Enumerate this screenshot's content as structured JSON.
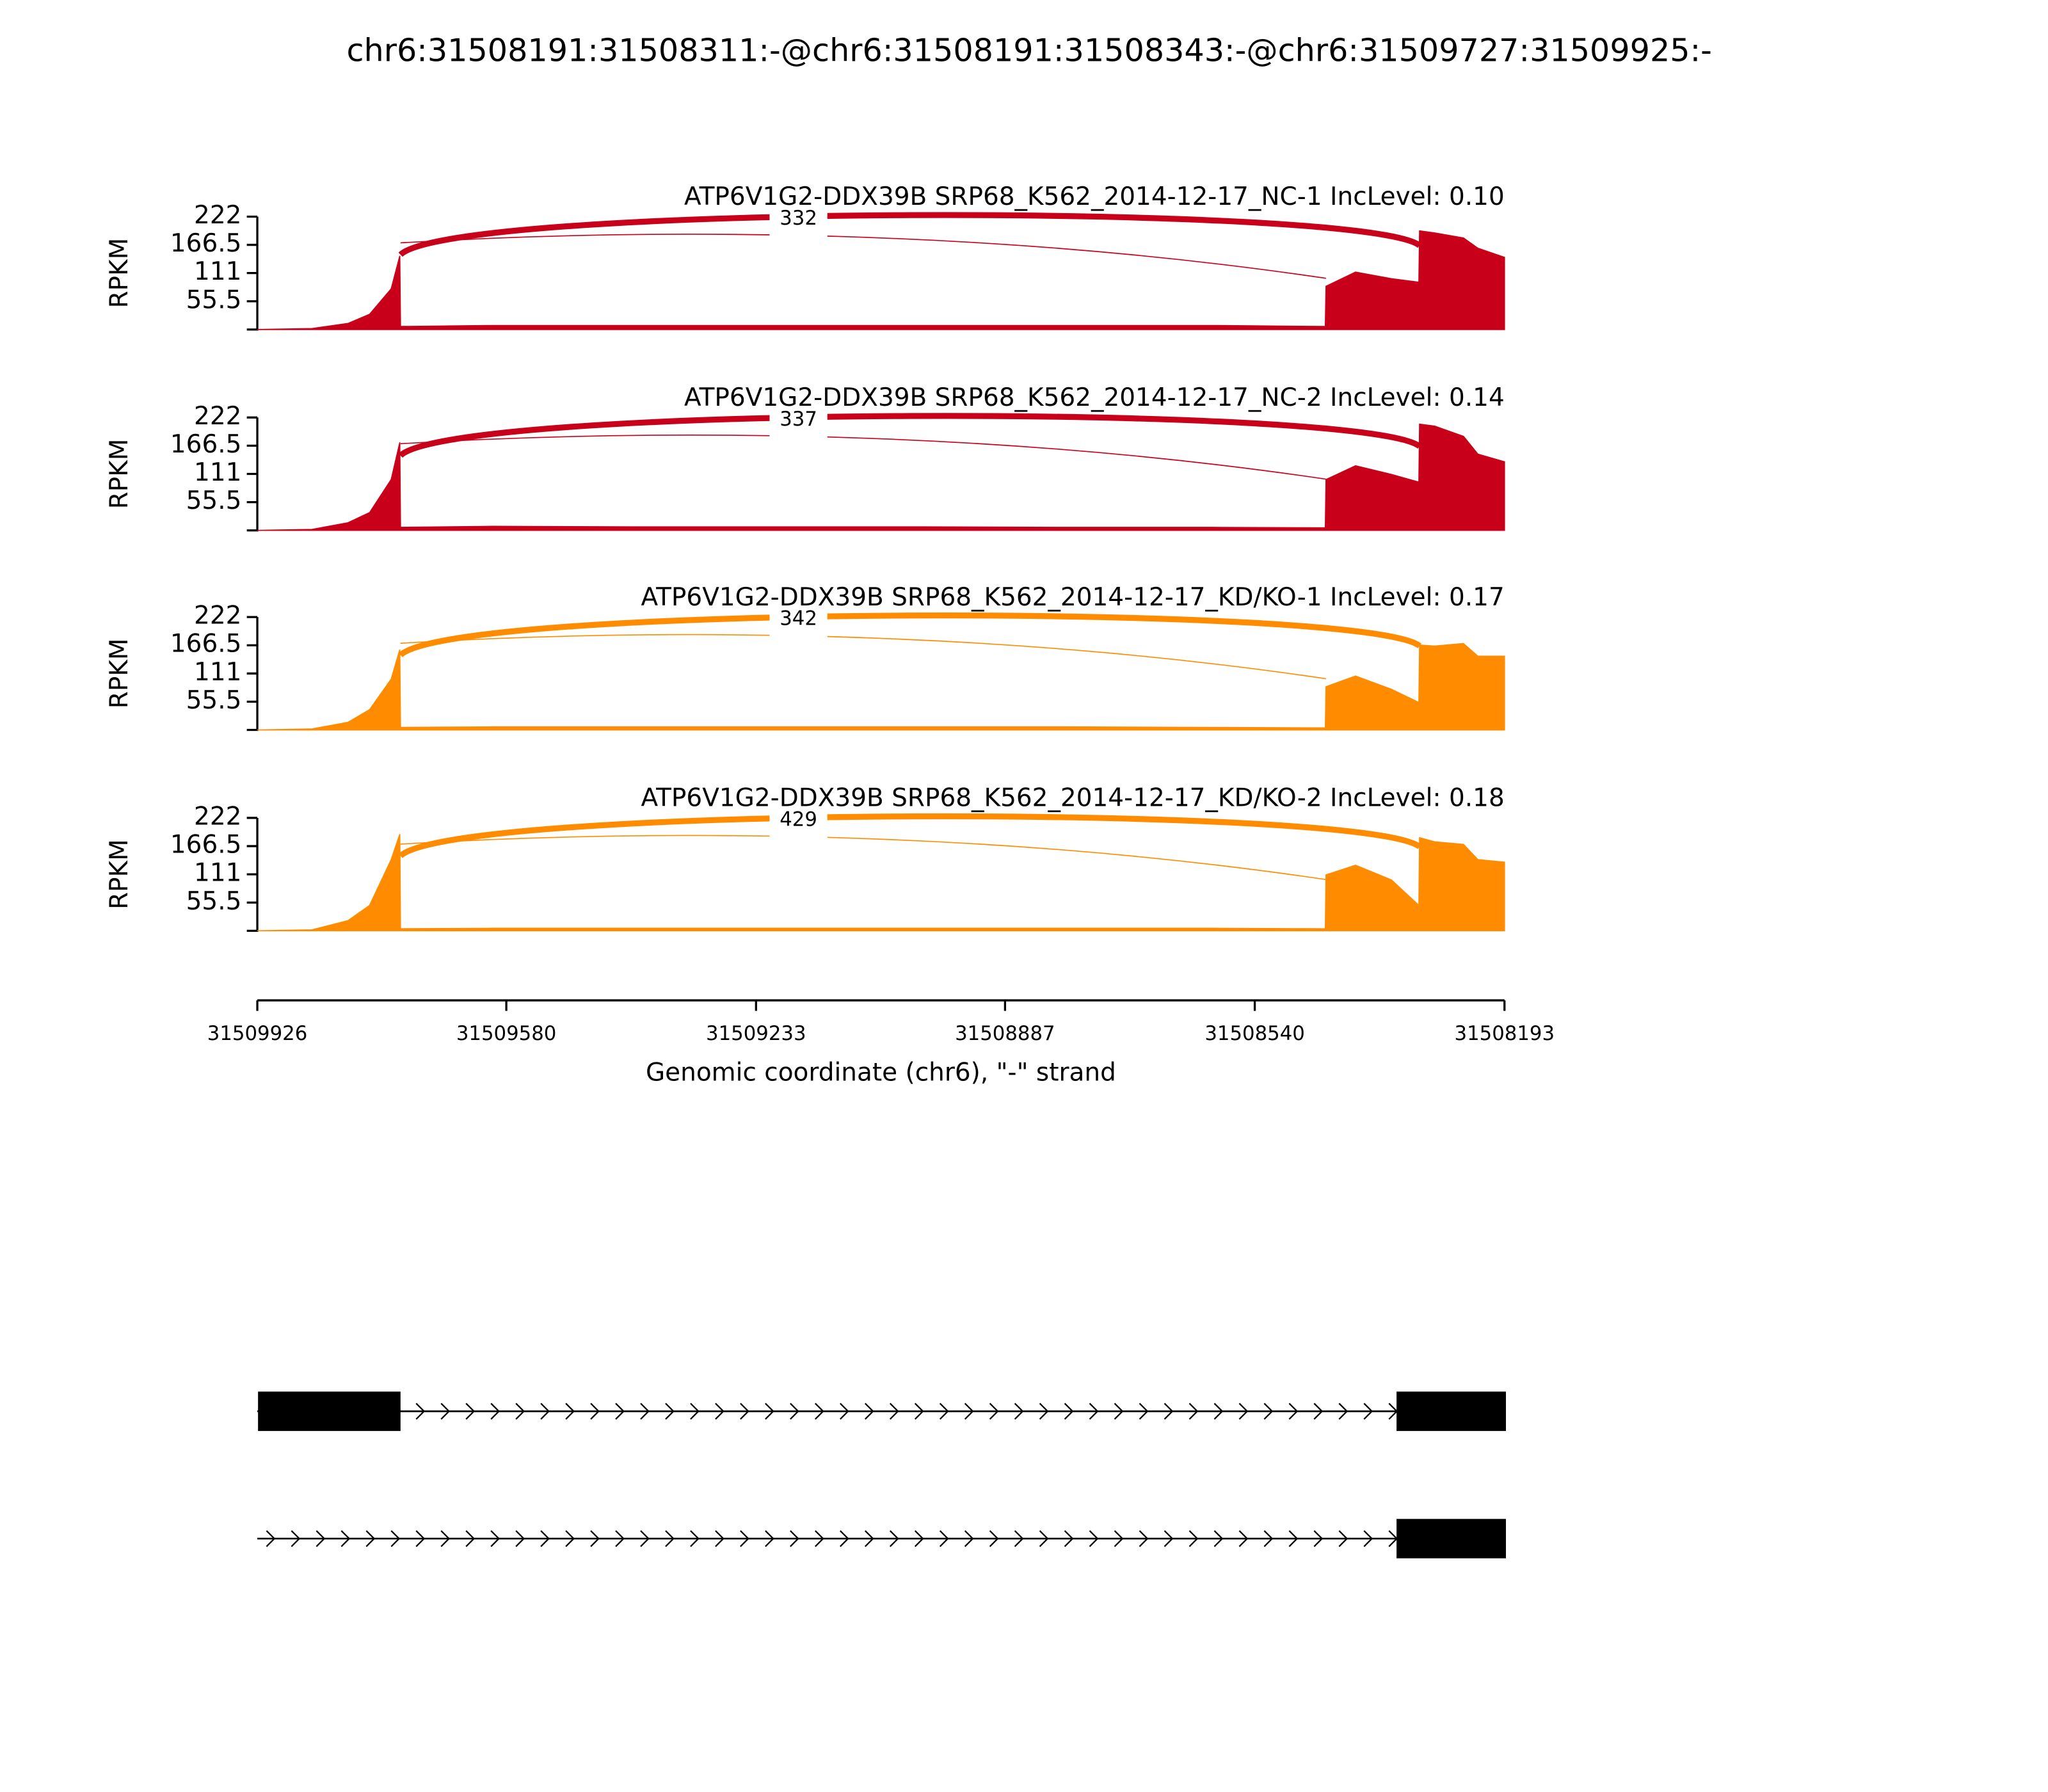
{
  "chart_data": {
    "type": "sashimi",
    "title": "chr6:31508191:31508311:-@chr6:31508191:31508343:-@chr6:31509727:31509925:-",
    "xlim": [
      31509926,
      31508193
    ],
    "xticks": [
      31509926,
      31509580,
      31509233,
      31508887,
      31508540,
      31508193
    ],
    "xlabel": "Genomic coordinate (chr6), \"-\" strand",
    "coverage_x": [
      31509926,
      31509850,
      31509800,
      31509770,
      31509740,
      31509728,
      31509727,
      31509600,
      31509400,
      31509200,
      31509000,
      31508800,
      31508600,
      31508442,
      31508441,
      31508400,
      31508350,
      31508312,
      31508311,
      31508290,
      31508250,
      31508230,
      31508193
    ],
    "panels": [
      {
        "label": "ATP6V1G2-DDX39B SRP68_K562_2014-12-17_NC-1 IncLevel: 0.10",
        "color": "#c9001a",
        "ylabel": "RPKM",
        "ylim": [
          0,
          222
        ],
        "yticks": [
          55.5,
          111,
          166.5,
          222
        ],
        "values": [
          0,
          2,
          12,
          30,
          80,
          145,
          6,
          8,
          8,
          8,
          8,
          8,
          8,
          6,
          85,
          113,
          100,
          93,
          194,
          190,
          180,
          160,
          142
        ],
        "junctions": [
          {
            "start": 31509727,
            "end": 31508311,
            "count": 332
          }
        ]
      },
      {
        "label": "ATP6V1G2-DDX39B SRP68_K562_2014-12-17_NC-2 IncLevel: 0.14",
        "color": "#c9001a",
        "ylabel": "RPKM",
        "ylim": [
          0,
          222
        ],
        "yticks": [
          55.5,
          111,
          166.5,
          222
        ],
        "values": [
          0,
          2,
          15,
          35,
          100,
          173,
          6,
          8,
          7,
          7,
          7,
          6,
          6,
          5,
          100,
          127,
          110,
          95,
          209,
          205,
          185,
          150,
          135
        ],
        "junctions": [
          {
            "start": 31509727,
            "end": 31508311,
            "count": 337
          }
        ]
      },
      {
        "label": "ATP6V1G2-DDX39B SRP68_K562_2014-12-17_KD/KO-1 IncLevel: 0.17",
        "color": "#ff8c00",
        "ylabel": "RPKM",
        "ylim": [
          0,
          222
        ],
        "yticks": [
          55.5,
          111,
          166.5,
          222
        ],
        "values": [
          0,
          2,
          15,
          40,
          100,
          158,
          5,
          6,
          6,
          6,
          6,
          6,
          5,
          4,
          85,
          106,
          80,
          54,
          167,
          165,
          170,
          145,
          145
        ],
        "junctions": [
          {
            "start": 31509727,
            "end": 31508311,
            "count": 342
          }
        ]
      },
      {
        "label": "ATP6V1G2-DDX39B SRP68_K562_2014-12-17_KD/KO-2 IncLevel: 0.18",
        "color": "#ff8c00",
        "ylabel": "RPKM",
        "ylim": [
          0,
          222
        ],
        "yticks": [
          55.5,
          111,
          166.5,
          222
        ],
        "values": [
          0,
          2,
          20,
          50,
          140,
          190,
          4,
          5,
          5,
          5,
          5,
          5,
          5,
          4,
          110,
          129,
          100,
          50,
          183,
          175,
          170,
          140,
          135
        ],
        "junctions": [
          {
            "start": 31509727,
            "end": 31508311,
            "count": 429
          }
        ]
      }
    ],
    "transcripts": [
      {
        "span": [
          31509926,
          31508191
        ],
        "exons": [
          [
            31509925,
            31509727
          ],
          [
            31508343,
            31508191
          ]
        ]
      },
      {
        "span": [
          31509926,
          31508191
        ],
        "exons": [
          [
            31508343,
            31508191
          ]
        ]
      }
    ]
  }
}
